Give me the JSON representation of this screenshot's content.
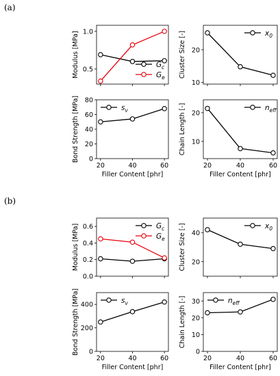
{
  "panels": [
    {
      "label": "(a)",
      "charts": [
        {
          "type": "line",
          "ylabel": "Modulus [MPa]",
          "xlabel": "",
          "x": [
            20,
            40,
            60
          ],
          "ylim": [
            0.3,
            1.08
          ],
          "yticks": [
            0.5,
            1.0
          ],
          "ytick_labels": [
            "0.5",
            "1.0"
          ],
          "xtick_labels": [
            "",
            "",
            ""
          ],
          "legend": "bottom-right",
          "series": [
            {
              "name": "G",
              "sub": "c",
              "color": "#000000",
              "values": [
                0.69,
                0.6,
                0.61
              ]
            },
            {
              "name": "G",
              "sub": "e",
              "color": "#e8000b",
              "values": [
                0.34,
                0.82,
                1.0
              ]
            }
          ]
        },
        {
          "type": "line",
          "ylabel": "Cluster Size [-]",
          "xlabel": "",
          "x": [
            20,
            40,
            60
          ],
          "ylim": [
            9.5,
            27.5
          ],
          "yticks": [
            10,
            20
          ],
          "ytick_labels": [
            "10",
            "20"
          ],
          "xtick_labels": [
            "",
            "",
            ""
          ],
          "legend": "top-right",
          "series": [
            {
              "name": "x",
              "sub": "0",
              "color": "#000000",
              "values": [
                25.2,
                14.8,
                12.2
              ]
            }
          ]
        },
        {
          "type": "line",
          "ylabel": "Bond Strength [MPa]",
          "xlabel": "Filler Content [phr]",
          "x": [
            20,
            40,
            60
          ],
          "ylim": [
            0,
            80
          ],
          "yticks": [
            0,
            20,
            40,
            60,
            80
          ],
          "ytick_labels": [
            "0",
            "20",
            "40",
            "60",
            "80"
          ],
          "xtick_labels": [
            "20",
            "40",
            "60"
          ],
          "legend": "top-left",
          "series": [
            {
              "name": "s",
              "sub": "v",
              "color": "#000000",
              "values": [
                50,
                54,
                68
              ]
            }
          ]
        },
        {
          "type": "line",
          "ylabel": "Chain Length [-]",
          "xlabel": "Filler Content [phr]",
          "x": [
            20,
            40,
            60
          ],
          "ylim": [
            4,
            24.5
          ],
          "yticks": [
            10,
            20
          ],
          "ytick_labels": [
            "10",
            "20"
          ],
          "xtick_labels": [
            "20",
            "40",
            "60"
          ],
          "legend": "top-right",
          "series": [
            {
              "name": "n",
              "sub": "eff",
              "color": "#000000",
              "values": [
                21.5,
                7.5,
                6.0
              ]
            }
          ]
        }
      ]
    },
    {
      "label": "(b)",
      "charts": [
        {
          "type": "line",
          "ylabel": "Modulus [MPa]",
          "xlabel": "",
          "x": [
            20,
            40,
            60
          ],
          "ylim": [
            0,
            0.7
          ],
          "yticks": [
            0.0,
            0.2,
            0.4,
            0.6
          ],
          "ytick_labels": [
            "0.0",
            "0.2",
            "0.4",
            "0.6"
          ],
          "xtick_labels": [
            "",
            "",
            ""
          ],
          "legend": "top-right",
          "series": [
            {
              "name": "G",
              "sub": "c",
              "color": "#000000",
              "values": [
                0.21,
                0.18,
                0.21
              ]
            },
            {
              "name": "G",
              "sub": "e",
              "color": "#e8000b",
              "values": [
                0.45,
                0.41,
                0.22
              ]
            }
          ]
        },
        {
          "type": "line",
          "ylabel": "Cluster Size [-]",
          "xlabel": "",
          "x": [
            20,
            40,
            60
          ],
          "ylim": [
            10,
            50
          ],
          "yticks": [
            20,
            40
          ],
          "ytick_labels": [
            "20",
            "40"
          ],
          "xtick_labels": [
            "",
            "",
            ""
          ],
          "legend": "top-right",
          "series": [
            {
              "name": "x",
              "sub": "0",
              "color": "#000000",
              "values": [
                42,
                32,
                29
              ]
            }
          ]
        },
        {
          "type": "line",
          "ylabel": "Bond Strength [MPa]",
          "xlabel": "Filler Content [phr]",
          "x": [
            20,
            40,
            60
          ],
          "ylim": [
            0,
            500
          ],
          "yticks": [
            0,
            200,
            400
          ],
          "ytick_labels": [
            "0",
            "200",
            "400"
          ],
          "xtick_labels": [
            "20",
            "40",
            "60"
          ],
          "legend": "top-left",
          "series": [
            {
              "name": "s",
              "sub": "v",
              "color": "#000000",
              "values": [
                250,
                338,
                420
              ]
            }
          ]
        },
        {
          "type": "line",
          "ylabel": "Chain Length [-]",
          "xlabel": "Filler Content [phr]",
          "x": [
            20,
            40,
            60
          ],
          "ylim": [
            0,
            35
          ],
          "yticks": [
            0,
            10,
            20,
            30
          ],
          "ytick_labels": [
            "0",
            "10",
            "20",
            "30"
          ],
          "xtick_labels": [
            "20",
            "40",
            "60"
          ],
          "legend": "top-left",
          "series": [
            {
              "name": "n",
              "sub": "eff",
              "color": "#000000",
              "values": [
                23,
                23.5,
                31
              ]
            }
          ]
        }
      ]
    }
  ]
}
